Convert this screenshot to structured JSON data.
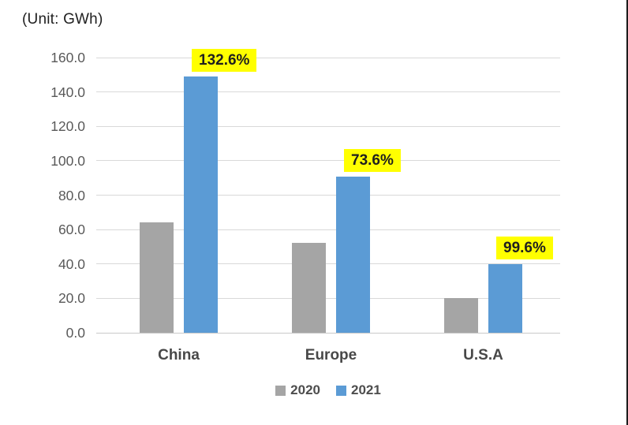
{
  "unit_label": "(Unit: GWh)",
  "chart_data": {
    "type": "bar",
    "title": "(Unit: GWh)",
    "categories": [
      "China",
      "Europe",
      "U.S.A"
    ],
    "series": [
      {
        "name": "2020",
        "color": "#A5A5A5",
        "values": [
          64,
          52.4,
          20
        ]
      },
      {
        "name": "2021",
        "color": "#5B9BD5",
        "values": [
          149,
          91,
          39.9
        ]
      }
    ],
    "growth_labels": [
      "132.6%",
      "73.6%",
      "99.6%"
    ],
    "growth_label_bg": "#FFFF00",
    "ytick_labels": [
      "160.0",
      "140.0",
      "120.0",
      "100.0",
      "80.0",
      "60.0",
      "40.0",
      "20.0",
      "0.0"
    ],
    "ylim": [
      0,
      160
    ],
    "grid": true,
    "legend_position": "bottom"
  }
}
